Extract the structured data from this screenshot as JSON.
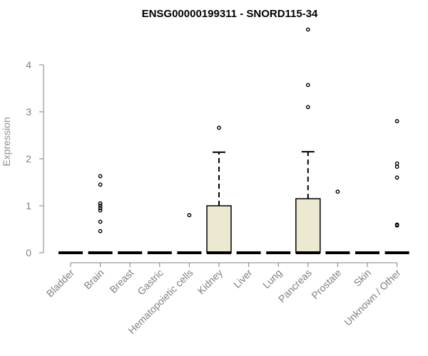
{
  "chart_data": {
    "type": "boxplot",
    "title": "ENSG00000199311 - SNORD115-34",
    "xlabel": "",
    "ylabel": "Expression",
    "ylim": [
      0,
      4.8
    ],
    "yticks": [
      0,
      1,
      2,
      3,
      4
    ],
    "box_fill": "#ede8d0",
    "categories": [
      "Bladder",
      "Brain",
      "Breast",
      "Gastric",
      "Hematopoietic cells",
      "Kidney",
      "Liver",
      "Lung",
      "Pancreas",
      "Prostate",
      "Skin",
      "Unknown / Other"
    ],
    "boxes": [
      {
        "category": "Bladder",
        "min": 0,
        "q1": 0,
        "median": 0,
        "q3": 0,
        "max": 0,
        "outliers": []
      },
      {
        "category": "Brain",
        "min": 0,
        "q1": 0,
        "median": 0,
        "q3": 0,
        "max": 0,
        "outliers": [
          0.46,
          0.66,
          0.9,
          0.95,
          1.0,
          1.05,
          1.45,
          1.63
        ]
      },
      {
        "category": "Breast",
        "min": 0,
        "q1": 0,
        "median": 0,
        "q3": 0,
        "max": 0,
        "outliers": []
      },
      {
        "category": "Gastric",
        "min": 0,
        "q1": 0,
        "median": 0,
        "q3": 0,
        "max": 0,
        "outliers": []
      },
      {
        "category": "Hematopoietic cells",
        "min": 0,
        "q1": 0,
        "median": 0,
        "q3": 0,
        "max": 0,
        "outliers": [
          0.8
        ]
      },
      {
        "category": "Kidney",
        "min": 0,
        "q1": 0,
        "median": 0,
        "q3": 1.0,
        "max": 2.14,
        "outliers": [
          2.66
        ]
      },
      {
        "category": "Liver",
        "min": 0,
        "q1": 0,
        "median": 0,
        "q3": 0,
        "max": 0,
        "outliers": []
      },
      {
        "category": "Lung",
        "min": 0,
        "q1": 0,
        "median": 0,
        "q3": 0,
        "max": 0,
        "outliers": []
      },
      {
        "category": "Pancreas",
        "min": 0,
        "q1": 0,
        "median": 0,
        "q3": 1.15,
        "max": 2.15,
        "outliers": [
          3.1,
          3.57,
          4.75
        ]
      },
      {
        "category": "Prostate",
        "min": 0,
        "q1": 0,
        "median": 0,
        "q3": 0,
        "max": 0,
        "outliers": [
          1.3
        ]
      },
      {
        "category": "Skin",
        "min": 0,
        "q1": 0,
        "median": 0,
        "q3": 0,
        "max": 0,
        "outliers": []
      },
      {
        "category": "Unknown / Other",
        "min": 0,
        "q1": 0,
        "median": 0,
        "q3": 0,
        "max": 0,
        "outliers": [
          0.58,
          0.6,
          1.6,
          1.83,
          1.9,
          2.8
        ]
      }
    ]
  }
}
